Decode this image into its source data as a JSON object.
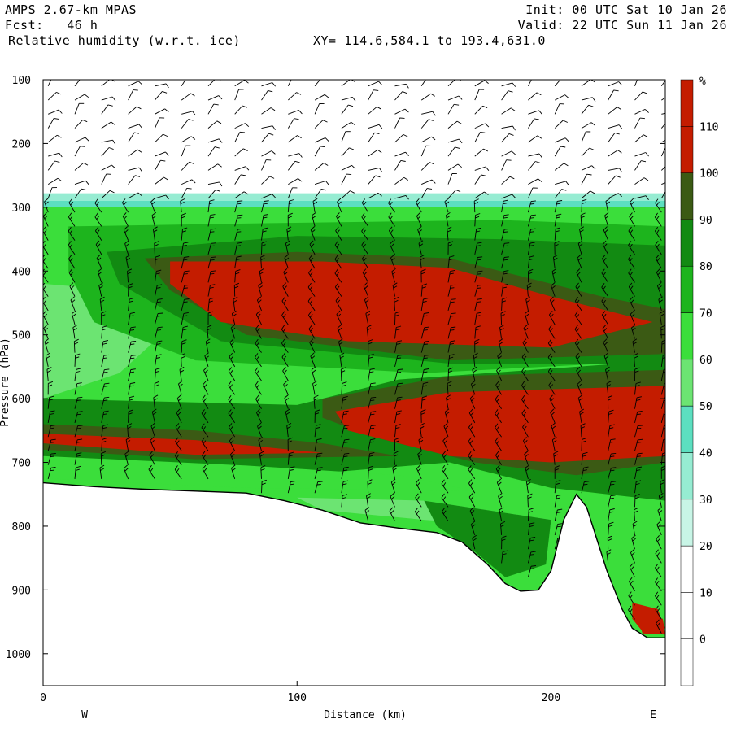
{
  "header": {
    "model": "AMPS 2.67-km MPAS",
    "fcst": "Fcst:   46 h",
    "field": "Relative humidity (w.r.t. ice)",
    "xy": "XY= 114.6,584.1 to 193.4,631.0",
    "init": "Init: 00 UTC Sat 10 Jan 26",
    "valid": "Valid: 22 UTC Sun 11 Jan 26"
  },
  "chart_data": {
    "type": "heatmap",
    "title": "Relative humidity (w.r.t. ice)",
    "xlabel": "Distance (km)",
    "ylabel": "Pressure (hPa)",
    "xlim": [
      0,
      245
    ],
    "ylim": [
      1050,
      100
    ],
    "x_ticks": [
      0,
      100,
      200
    ],
    "y_ticks": [
      100,
      200,
      300,
      400,
      500,
      600,
      700,
      800,
      900,
      1000
    ],
    "x_end_labels": {
      "left": "W",
      "right": "E"
    },
    "colorbar": {
      "unit": "%",
      "levels": [
        0,
        10,
        20,
        30,
        40,
        50,
        60,
        70,
        80,
        90,
        100,
        110
      ],
      "colors": [
        "#ffffff",
        "#ffffff",
        "#ffffff",
        "#c8f5e6",
        "#96ecd2",
        "#5cdfc0",
        "#6ce472",
        "#3bde3b",
        "#1db41d",
        "#128a12",
        "#3b5a14",
        "#c41c00",
        "#c41c00"
      ]
    },
    "terrain": [
      [
        0,
        732
      ],
      [
        20,
        738
      ],
      [
        40,
        742
      ],
      [
        60,
        745
      ],
      [
        80,
        748
      ],
      [
        95,
        760
      ],
      [
        110,
        775
      ],
      [
        125,
        795
      ],
      [
        140,
        803
      ],
      [
        155,
        810
      ],
      [
        165,
        825
      ],
      [
        175,
        860
      ],
      [
        182,
        890
      ],
      [
        188,
        902
      ],
      [
        195,
        900
      ],
      [
        200,
        870
      ],
      [
        205,
        790
      ],
      [
        210,
        750
      ],
      [
        214,
        770
      ],
      [
        218,
        820
      ],
      [
        222,
        870
      ],
      [
        228,
        930
      ],
      [
        232,
        960
      ],
      [
        238,
        975
      ],
      [
        245,
        975
      ]
    ],
    "rh_regions": [
      {
        "level": 30,
        "poly": [
          [
            0,
            278
          ],
          [
            245,
            278
          ],
          [
            245,
            1050
          ],
          [
            0,
            1050
          ]
        ]
      },
      {
        "level": 40,
        "poly": [
          [
            0,
            290
          ],
          [
            245,
            290
          ],
          [
            245,
            1050
          ],
          [
            0,
            1050
          ]
        ]
      },
      {
        "level": 60,
        "poly": [
          [
            0,
            300
          ],
          [
            245,
            300
          ],
          [
            245,
            1050
          ],
          [
            0,
            1050
          ]
        ]
      },
      {
        "level": 50,
        "poly": [
          [
            0,
            420
          ],
          [
            30,
            430
          ],
          [
            55,
            470
          ],
          [
            30,
            560
          ],
          [
            0,
            600
          ]
        ]
      },
      {
        "level": 70,
        "poly": [
          [
            10,
            330
          ],
          [
            90,
            325
          ],
          [
            180,
            320
          ],
          [
            245,
            330
          ],
          [
            245,
            540
          ],
          [
            150,
            560
          ],
          [
            60,
            540
          ],
          [
            20,
            480
          ],
          [
            10,
            400
          ]
        ]
      },
      {
        "level": 80,
        "poly": [
          [
            25,
            370
          ],
          [
            100,
            345
          ],
          [
            180,
            350
          ],
          [
            245,
            360
          ],
          [
            245,
            545
          ],
          [
            160,
            545
          ],
          [
            70,
            510
          ],
          [
            30,
            420
          ]
        ]
      },
      {
        "level": 90,
        "poly": [
          [
            40,
            380
          ],
          [
            100,
            370
          ],
          [
            160,
            380
          ],
          [
            220,
            440
          ],
          [
            245,
            460
          ],
          [
            245,
            530
          ],
          [
            160,
            540
          ],
          [
            80,
            500
          ],
          [
            50,
            430
          ]
        ]
      },
      {
        "level": 100,
        "poly": [
          [
            50,
            385
          ],
          [
            110,
            385
          ],
          [
            160,
            395
          ],
          [
            200,
            440
          ],
          [
            240,
            480
          ],
          [
            200,
            520
          ],
          [
            120,
            510
          ],
          [
            70,
            480
          ],
          [
            50,
            420
          ]
        ]
      },
      {
        "level": 110,
        "poly": [
          [
            65,
            408
          ],
          [
            75,
            408
          ],
          [
            75,
            412
          ],
          [
            65,
            412
          ]
        ]
      },
      {
        "level": 80,
        "poly": [
          [
            0,
            600
          ],
          [
            100,
            610
          ],
          [
            140,
            570
          ],
          [
            245,
            540
          ],
          [
            245,
            760
          ],
          [
            200,
            740
          ],
          [
            160,
            700
          ],
          [
            100,
            720
          ],
          [
            0,
            700
          ]
        ]
      },
      {
        "level": 90,
        "poly": [
          [
            110,
            600
          ],
          [
            160,
            565
          ],
          [
            245,
            555
          ],
          [
            245,
            700
          ],
          [
            210,
            720
          ],
          [
            170,
            700
          ],
          [
            130,
            660
          ],
          [
            110,
            630
          ]
        ]
      },
      {
        "level": 100,
        "poly": [
          [
            115,
            620
          ],
          [
            160,
            590
          ],
          [
            245,
            580
          ],
          [
            245,
            690
          ],
          [
            200,
            700
          ],
          [
            160,
            690
          ],
          [
            120,
            650
          ]
        ]
      },
      {
        "level": 110,
        "poly": [
          [
            152,
            620
          ],
          [
            190,
            610
          ],
          [
            225,
            600
          ],
          [
            245,
            590
          ],
          [
            245,
            625
          ],
          [
            200,
            645
          ],
          [
            160,
            640
          ],
          [
            152,
            630
          ]
        ]
      },
      {
        "level": 90,
        "poly": [
          [
            0,
            640
          ],
          [
            60,
            650
          ],
          [
            110,
            670
          ],
          [
            140,
            690
          ],
          [
            60,
            695
          ],
          [
            0,
            680
          ]
        ]
      },
      {
        "level": 100,
        "poly": [
          [
            0,
            655
          ],
          [
            60,
            665
          ],
          [
            110,
            685
          ],
          [
            60,
            688
          ],
          [
            0,
            670
          ]
        ]
      },
      {
        "level": 60,
        "poly": [
          [
            0,
            690
          ],
          [
            80,
            705
          ],
          [
            140,
            720
          ],
          [
            170,
            745
          ],
          [
            80,
            740
          ],
          [
            0,
            725
          ]
        ]
      },
      {
        "level": 50,
        "poly": [
          [
            100,
            755
          ],
          [
            150,
            760
          ],
          [
            200,
            790
          ],
          [
            185,
            800
          ],
          [
            150,
            790
          ],
          [
            110,
            775
          ]
        ]
      },
      {
        "level": 40,
        "poly": [
          [
            170,
            785
          ],
          [
            190,
            790
          ],
          [
            200,
            800
          ],
          [
            180,
            805
          ]
        ]
      },
      {
        "level": 80,
        "poly": [
          [
            150,
            760
          ],
          [
            175,
            775
          ],
          [
            200,
            790
          ],
          [
            198,
            860
          ],
          [
            182,
            880
          ],
          [
            170,
            840
          ],
          [
            155,
            800
          ]
        ]
      },
      {
        "level": 100,
        "poly": [
          [
            232,
            920
          ],
          [
            242,
            930
          ],
          [
            245,
            960
          ],
          [
            236,
            965
          ],
          [
            232,
            945
          ]
        ]
      },
      {
        "level": 110,
        "poly": [
          [
            234,
            940
          ],
          [
            244,
            945
          ],
          [
            245,
            970
          ],
          [
            236,
            968
          ]
        ]
      }
    ]
  }
}
